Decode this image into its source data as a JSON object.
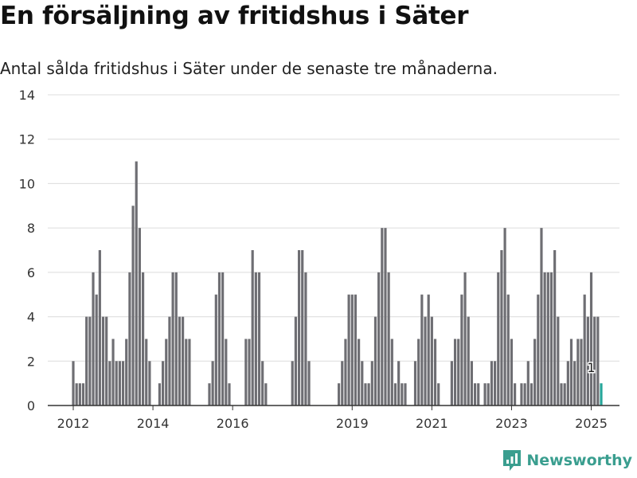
{
  "title": "En försäljning av fritidshus i Säter",
  "subtitle": "Antal sålda fritidshus i Säter under de senaste tre månaderna.",
  "brand": {
    "name": "Newsworthy",
    "icon": "newsworthy-logo-icon"
  },
  "colors": {
    "bar": "#6e6e73",
    "highlight": "#26a69a",
    "grid": "#dcdcdc",
    "axis": "#333333"
  },
  "chart_data": {
    "type": "bar",
    "title": "En försäljning av fritidshus i Säter",
    "subtitle": "Antal sålda fritidshus i Säter under de senaste tre månaderna.",
    "xlabel": "",
    "ylabel": "",
    "ylim": [
      0,
      14
    ],
    "yticks": [
      0,
      2,
      4,
      6,
      8,
      10,
      12,
      14
    ],
    "xticks": [
      "2012",
      "2014",
      "2016",
      "2019",
      "2021",
      "2023",
      "2025"
    ],
    "grid": true,
    "x_start": "2012-01",
    "x_end": "2025-01",
    "values": [
      2,
      1,
      1,
      1,
      4,
      4,
      6,
      5,
      7,
      4,
      4,
      2,
      3,
      2,
      2,
      2,
      3,
      6,
      9,
      11,
      8,
      6,
      3,
      2,
      0,
      0,
      1,
      2,
      3,
      4,
      6,
      6,
      4,
      4,
      3,
      3,
      0,
      0,
      0,
      0,
      0,
      1,
      2,
      5,
      6,
      6,
      3,
      1,
      0,
      0,
      0,
      0,
      3,
      3,
      7,
      6,
      6,
      2,
      1,
      0,
      0,
      0,
      0,
      0,
      0,
      0,
      2,
      4,
      7,
      7,
      6,
      2,
      0,
      0,
      0,
      0,
      0,
      0,
      0,
      0,
      1,
      2,
      3,
      5,
      5,
      5,
      3,
      2,
      1,
      1,
      2,
      4,
      6,
      8,
      8,
      6,
      3,
      1,
      2,
      1,
      1,
      0,
      0,
      2,
      3,
      5,
      4,
      5,
      4,
      3,
      1,
      0,
      0,
      0,
      2,
      3,
      3,
      5,
      6,
      4,
      2,
      1,
      1,
      0,
      1,
      1,
      2,
      2,
      6,
      7,
      8,
      5,
      3,
      1,
      0,
      1,
      1,
      2,
      1,
      3,
      5,
      8,
      6,
      6,
      6,
      7,
      4,
      1,
      1,
      2,
      3,
      2,
      3,
      3,
      5,
      4,
      6,
      4,
      4,
      1
    ],
    "annotation": {
      "label": "1",
      "x": "2025-01",
      "value": 1
    }
  }
}
